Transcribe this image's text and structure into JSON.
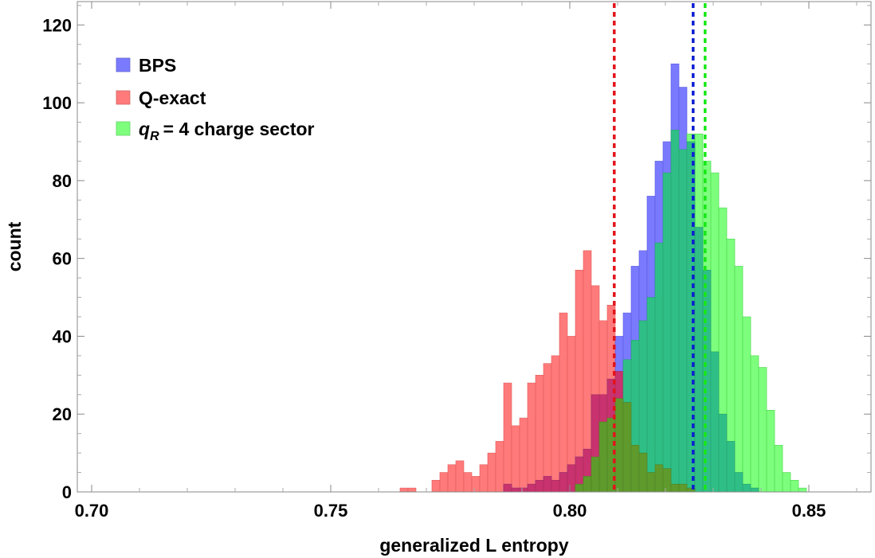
{
  "chart_data": {
    "type": "histogram",
    "xlabel": "generalized L entropy",
    "ylabel": "count",
    "xlim": [
      0.697,
      0.863
    ],
    "ylim": [
      0,
      126
    ],
    "bin_start": 0.7645,
    "bin_width": 0.0016667,
    "x_ticks": [
      {
        "value": 0.7,
        "label": "0.70"
      },
      {
        "value": 0.75,
        "label": "0.75"
      },
      {
        "value": 0.8,
        "label": "0.80"
      },
      {
        "value": 0.85,
        "label": "0.85"
      }
    ],
    "y_ticks": [
      {
        "value": 0,
        "label": "0"
      },
      {
        "value": 20,
        "label": "20"
      },
      {
        "value": 40,
        "label": "40"
      },
      {
        "value": 60,
        "label": "60"
      },
      {
        "value": 80,
        "label": "80"
      },
      {
        "value": 100,
        "label": "100"
      },
      {
        "value": 120,
        "label": "120"
      }
    ],
    "series": [
      {
        "name": "Q-exact",
        "color": "#ff7a7a",
        "line_color": "#e2141b",
        "mean": 0.8093,
        "values": [
          1,
          1,
          0,
          0,
          3,
          5,
          7,
          8,
          5,
          4,
          7,
          10,
          13,
          28,
          17,
          19,
          28,
          30,
          33,
          35,
          46,
          40,
          57,
          62,
          53,
          44,
          48,
          31,
          23,
          12,
          10,
          5,
          7,
          6,
          2,
          2,
          1,
          0,
          0,
          0,
          0
        ]
      },
      {
        "name": "BPS",
        "color": "#7a7aff",
        "line_color": "#0c1fd1",
        "mean": 0.8258,
        "values": [
          0,
          0,
          0,
          0,
          0,
          0,
          0,
          0,
          0,
          0,
          0,
          0,
          0,
          2,
          1,
          1,
          2,
          3,
          4,
          3,
          5,
          7,
          9,
          11,
          25,
          25,
          29,
          40,
          46,
          58,
          62,
          76,
          85,
          90,
          110,
          104,
          90,
          68,
          57,
          36,
          20,
          13,
          5,
          2,
          1
        ]
      },
      {
        "name": "charge sector",
        "legend_label": "= 4 charge sector",
        "legend_symbol": "q",
        "legend_subscript": "R",
        "color": "#7dff7d",
        "line_color": "#17e817",
        "mean": 0.8283,
        "values": [
          0,
          0,
          0,
          0,
          0,
          0,
          0,
          0,
          0,
          0,
          0,
          0,
          0,
          0,
          0,
          0,
          0,
          0,
          0,
          0,
          0,
          0,
          2,
          4,
          9,
          18,
          19,
          24,
          34,
          39,
          44,
          50,
          64,
          82,
          93,
          88,
          92,
          92,
          85,
          82,
          73,
          65,
          58,
          45,
          35,
          32,
          21,
          12,
          5,
          3,
          1
        ]
      }
    ]
  }
}
